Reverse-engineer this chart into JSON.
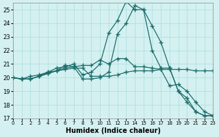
{
  "xlabel": "Humidex (Indice chaleur)",
  "xlim": [
    0,
    23
  ],
  "ylim": [
    17,
    25.5
  ],
  "yticks": [
    17,
    18,
    19,
    20,
    21,
    22,
    23,
    24,
    25
  ],
  "xticks": [
    0,
    1,
    2,
    3,
    4,
    5,
    6,
    7,
    8,
    9,
    10,
    11,
    12,
    13,
    14,
    15,
    16,
    17,
    18,
    19,
    20,
    21,
    22,
    23
  ],
  "background_color": "#d4f0f0",
  "grid_color": "#aadddd",
  "line_color": "#1a6b6b",
  "lines": [
    [
      20.0,
      19.9,
      19.9,
      20.1,
      20.3,
      20.5,
      20.6,
      20.7,
      20.7,
      20.1,
      20.1,
      20.1,
      20.2,
      20.4,
      20.5,
      20.5,
      20.5,
      20.6,
      20.6,
      20.6,
      20.6,
      20.5,
      20.5,
      20.5
    ],
    [
      20.0,
      19.9,
      19.9,
      20.1,
      20.3,
      20.5,
      20.7,
      20.8,
      19.9,
      19.9,
      20.0,
      20.4,
      23.2,
      24.0,
      25.3,
      25.0,
      22.0,
      20.7,
      20.7,
      19.0,
      18.2,
      17.5,
      17.2,
      17.2
    ],
    [
      20.0,
      19.9,
      19.9,
      20.1,
      20.4,
      20.5,
      20.9,
      20.8,
      20.9,
      20.9,
      21.3,
      21.0,
      21.4,
      21.4,
      20.8,
      20.8,
      20.7,
      20.6,
      19.4,
      19.5,
      19.0,
      18.2,
      17.5,
      17.2
    ],
    [
      20.0,
      19.9,
      20.1,
      20.2,
      20.4,
      20.7,
      20.8,
      21.0,
      20.2,
      20.4,
      21.0,
      23.3,
      24.2,
      25.6,
      25.0,
      25.0,
      23.8,
      22.6,
      20.7,
      19.0,
      18.5,
      17.5,
      17.2,
      17.2
    ]
  ]
}
